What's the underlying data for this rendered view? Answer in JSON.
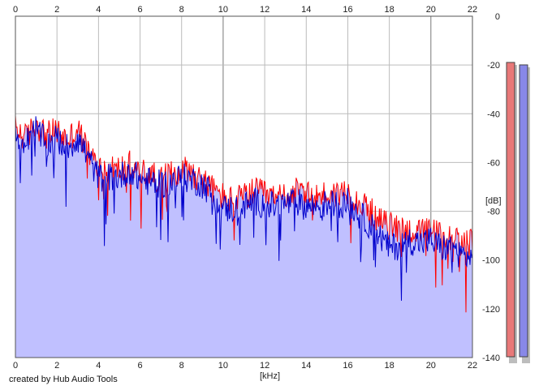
{
  "app": {
    "credit": "created by Hub Audio Tools"
  },
  "colors": {
    "background": "#ffffff",
    "plot_fill": "#c0c0ff",
    "channel_left": "#ff0000",
    "channel_right": "#0000cc",
    "grid": "#bbbbbb",
    "grid_major": "#777777",
    "meter_left": "#e87878",
    "meter_right": "#8888e8",
    "meter_shadow": "#bdbdbd"
  },
  "meters": {
    "left_level_db": -19,
    "right_level_db": -20
  },
  "chart_data": {
    "type": "area",
    "xlabel": "[kHz]",
    "ylabel": "[dB]",
    "xlim": [
      0,
      22
    ],
    "ylim": [
      -140,
      0
    ],
    "x_ticks": [
      "0",
      "2",
      "4",
      "6",
      "8",
      "10",
      "12",
      "14",
      "16",
      "18",
      "20",
      "22"
    ],
    "y_ticks": [
      "0",
      "-20",
      "-40",
      "-60",
      "-80",
      "-100",
      "-120",
      "-140"
    ],
    "grid": true,
    "series": [
      {
        "channel": "left",
        "color": "#ff0000",
        "x": [
          0,
          0.5,
          1,
          1.5,
          2,
          2.5,
          3,
          3.5,
          4,
          4.5,
          5,
          5.5,
          6,
          6.5,
          7,
          7.5,
          8,
          8.5,
          9,
          9.5,
          10,
          10.5,
          11,
          11.5,
          12,
          12.5,
          13,
          13.5,
          14,
          14.5,
          15,
          15.5,
          16,
          16.5,
          17,
          17.5,
          18,
          18.5,
          19,
          19.5,
          20,
          20.5,
          21,
          21.5,
          22
        ],
        "y": [
          -46,
          -50,
          -44,
          -49,
          -47,
          -51,
          -46,
          -56,
          -62,
          -63,
          -63,
          -61,
          -64,
          -65,
          -67,
          -65,
          -62,
          -64,
          -67,
          -71,
          -74,
          -76,
          -74,
          -72,
          -73,
          -75,
          -73,
          -72,
          -74,
          -74,
          -73,
          -73,
          -71,
          -76,
          -79,
          -84,
          -86,
          -87,
          -88,
          -89,
          -88,
          -90,
          -91,
          -93,
          -93
        ]
      },
      {
        "channel": "right",
        "color": "#0000cc",
        "x": [
          0,
          0.5,
          1,
          1.5,
          2,
          2.5,
          3,
          3.5,
          4,
          4.5,
          5,
          5.5,
          6,
          6.5,
          7,
          7.5,
          8,
          8.5,
          9,
          9.5,
          10,
          10.5,
          11,
          11.5,
          12,
          12.5,
          13,
          13.5,
          14,
          14.5,
          15,
          15.5,
          16,
          16.5,
          17,
          17.5,
          18,
          18.5,
          19,
          19.5,
          20,
          20.5,
          21,
          21.5,
          22
        ],
        "y": [
          -50,
          -52,
          -46,
          -53,
          -50,
          -54,
          -50,
          -58,
          -66,
          -66,
          -66,
          -63,
          -67,
          -68,
          -69,
          -68,
          -66,
          -67,
          -69,
          -73,
          -79,
          -79,
          -78,
          -76,
          -77,
          -78,
          -77,
          -76,
          -78,
          -78,
          -77,
          -77,
          -76,
          -81,
          -85,
          -90,
          -95,
          -94,
          -92,
          -93,
          -92,
          -95,
          -95,
          -98,
          -99
        ]
      }
    ]
  }
}
